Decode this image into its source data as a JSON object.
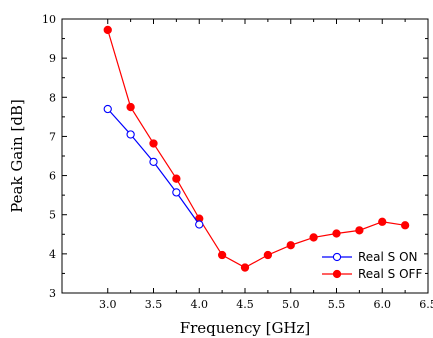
{
  "chart_data": {
    "type": "line",
    "xlabel": "Frequency [GHz]",
    "ylabel": "Peak Gain [dB]",
    "xlim": [
      2.5,
      6.5
    ],
    "ylim": [
      3,
      10
    ],
    "xticks": [
      "3.0",
      "3.5",
      "4.0",
      "4.5",
      "5.0",
      "5.5",
      "6.0",
      "6.5"
    ],
    "yticks": [
      "3",
      "4",
      "5",
      "6",
      "7",
      "8",
      "9",
      "10"
    ],
    "legend_position": "bottom-right",
    "series": [
      {
        "name": "Real S ON",
        "color": "#0000ff",
        "marker": "open-circle",
        "x": [
          3.0,
          3.25,
          3.5,
          3.75,
          4.0
        ],
        "y": [
          7.7,
          7.05,
          6.35,
          5.57,
          4.75
        ]
      },
      {
        "name": "Real S OFF",
        "color": "#ff0000",
        "marker": "filled-circle",
        "x": [
          3.0,
          3.25,
          3.5,
          3.75,
          4.0,
          4.25,
          4.5,
          4.75,
          5.0,
          5.25,
          5.5,
          5.75,
          6.0,
          6.25
        ],
        "y": [
          9.72,
          7.75,
          6.82,
          5.92,
          4.9,
          3.97,
          3.65,
          3.97,
          4.22,
          4.42,
          4.52,
          4.6,
          4.82,
          4.73
        ]
      }
    ]
  }
}
